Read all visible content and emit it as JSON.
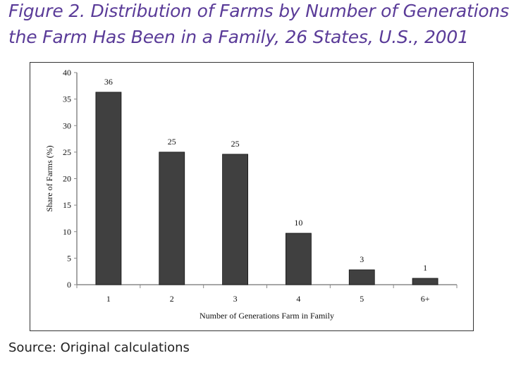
{
  "title_line1": "Figure 2. Distribution of Farms by Number of Generations",
  "title_line2": "the Farm Has Been in a Family, 26 States, U.S., 2001",
  "source": "Source: Original calculations",
  "chart_data": {
    "type": "bar",
    "title": "Figure 2. Distribution of Farms by Number of Generations the Farm Has Been in a Family, 26 States, U.S., 2001",
    "xlabel": "Number of Generations Farm in Family",
    "ylabel": "Share of Farms (%)",
    "categories": [
      "1",
      "2",
      "3",
      "4",
      "5",
      "6+"
    ],
    "values": [
      36.3,
      25.0,
      24.6,
      9.7,
      2.8,
      1.2
    ],
    "data_labels": [
      "36",
      "25",
      "25",
      "10",
      "3",
      "1"
    ],
    "ylim": [
      0,
      40
    ],
    "yticks": [
      0,
      5,
      10,
      15,
      20,
      25,
      30,
      35,
      40
    ],
    "grid": false,
    "bar_color": "#404040"
  }
}
